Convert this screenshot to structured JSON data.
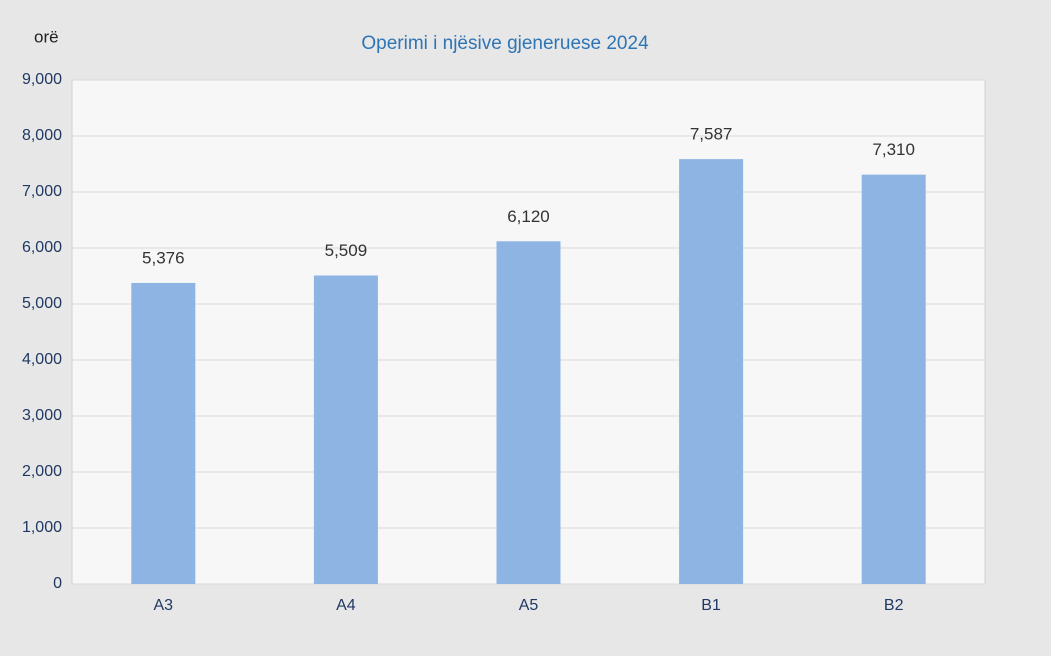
{
  "chart_data": {
    "type": "bar",
    "title": "Operimi i njësive gjeneruese 2024",
    "y_label": "orë",
    "categories": [
      "A3",
      "A4",
      "A5",
      "B1",
      "B2"
    ],
    "values": [
      5376,
      5509,
      6120,
      7587,
      7310
    ],
    "value_labels": [
      "5,376",
      "5,509",
      "6,120",
      "7,587",
      "7,310"
    ],
    "color": "#8eb4e3",
    "ylim": [
      0,
      9000
    ],
    "yticks": [
      0,
      {
        "value": 1000,
        "label": "1,000"
      },
      {
        "value": 2000,
        "label": "2,000"
      },
      {
        "value": 3000,
        "label": "3,000"
      },
      {
        "value": 4000,
        "label": "4,000"
      },
      {
        "value": 5000,
        "label": "5,000"
      },
      {
        "value": 6000,
        "label": "6,000"
      },
      {
        "value": 7000,
        "label": "7,000"
      },
      {
        "value": 8000,
        "label": "8,000"
      },
      {
        "value": 9000,
        "label": "9,000"
      }
    ],
    "grid": true
  }
}
